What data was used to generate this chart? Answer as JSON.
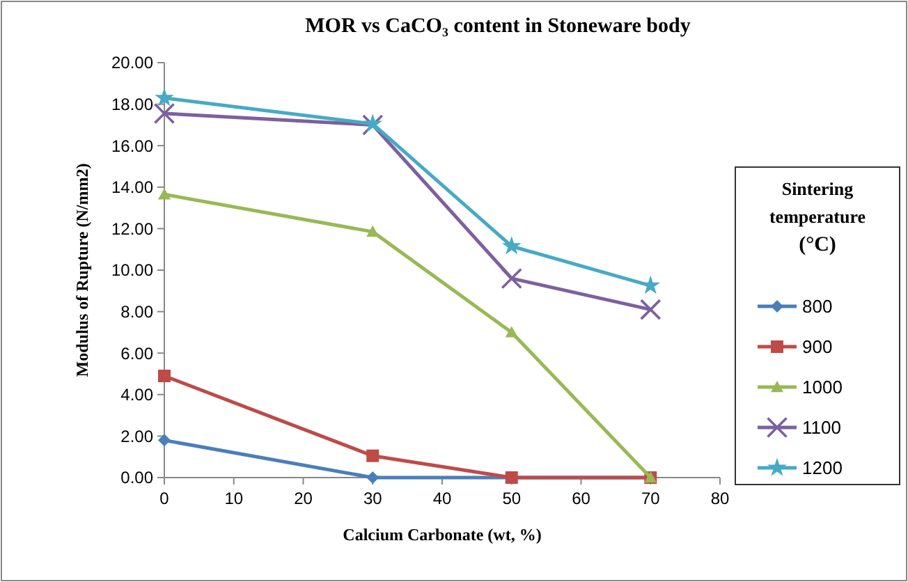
{
  "chart_data": {
    "type": "line",
    "title": "MOR vs CaCO₃ content in Stoneware body",
    "xlabel": "Calcium Carbonate (wt, %)",
    "ylabel": "Modulus of Rupture (N/mm2)",
    "legend_title": "Sintering temperature (°C)",
    "legend": "right",
    "grid": false,
    "x": [
      0,
      30,
      50,
      70
    ],
    "xlim": [
      0,
      80
    ],
    "xticks": [
      0,
      10,
      20,
      30,
      40,
      50,
      60,
      70,
      80
    ],
    "ylim": [
      0,
      20
    ],
    "yticks": [
      {
        "value": 0,
        "label": "0.00"
      },
      {
        "value": 2,
        "label": "2.00"
      },
      {
        "value": 4,
        "label": "4.00"
      },
      {
        "value": 6,
        "label": "6.00"
      },
      {
        "value": 8,
        "label": "8.00"
      },
      {
        "value": 10,
        "label": "10.00"
      },
      {
        "value": 12,
        "label": "12.00"
      },
      {
        "value": 14,
        "label": "14.00"
      },
      {
        "value": 16,
        "label": "16.00"
      },
      {
        "value": 18,
        "label": "18.00"
      },
      {
        "value": 20,
        "label": "20.00"
      }
    ],
    "series": [
      {
        "name": "800",
        "color": "#4a7ebb",
        "marker": "diamond",
        "values": [
          1.8,
          0,
          0,
          0
        ]
      },
      {
        "name": "900",
        "color": "#be4b48",
        "marker": "square",
        "values": [
          4.9,
          1.05,
          0,
          0
        ]
      },
      {
        "name": "1000",
        "color": "#98b954",
        "marker": "triangle",
        "values": [
          13.65,
          11.85,
          7.0,
          0
        ]
      },
      {
        "name": "1100",
        "color": "#7d60a0",
        "marker": "cross",
        "values": [
          17.55,
          17.0,
          9.6,
          8.1
        ]
      },
      {
        "name": "1200",
        "color": "#46aac5",
        "marker": "star",
        "values": [
          18.3,
          17.05,
          11.15,
          9.25
        ]
      }
    ]
  }
}
